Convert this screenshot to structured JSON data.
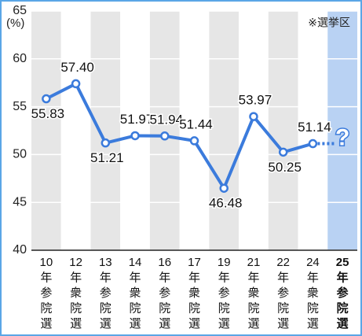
{
  "chart_data": {
    "type": "line",
    "y_unit_label": "(%)",
    "note": "※選挙区",
    "categories": [
      "10年参院選",
      "12年衆院選",
      "13年参院選",
      "14年衆院選",
      "16年参院選",
      "17年衆院選",
      "19年参院選",
      "21年衆院選",
      "22年参院選",
      "24年衆院選",
      "25年参院選"
    ],
    "series": [
      {
        "color": "#3b7bdc",
        "values": [
          55.83,
          57.4,
          51.21,
          51.97,
          51.94,
          51.44,
          46.48,
          53.97,
          50.25,
          51.14,
          null
        ],
        "value_labels": [
          "55.83",
          "57.40",
          "51.21",
          "51.97",
          "51.94",
          "51.44",
          "46.48",
          "53.97",
          "50.25",
          "51.14",
          null
        ]
      }
    ],
    "unknown_label": "?",
    "ylim": [
      40,
      65
    ],
    "yticks": [
      40,
      45,
      50,
      55,
      60,
      65
    ],
    "grid": true
  }
}
